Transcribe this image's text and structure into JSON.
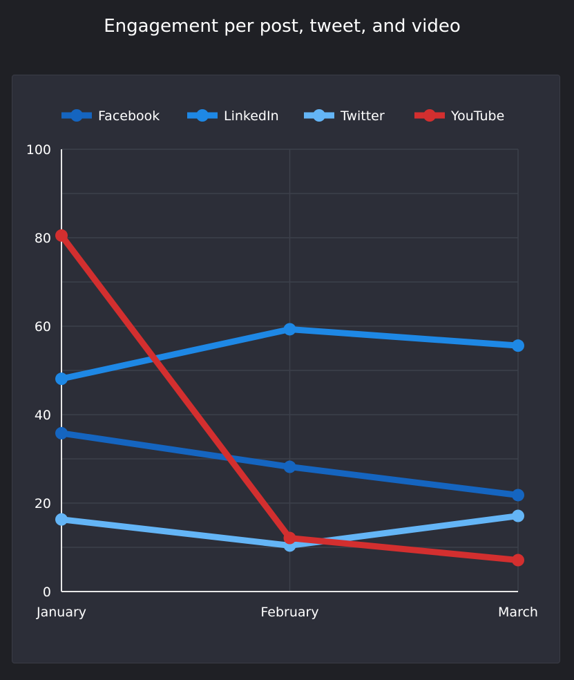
{
  "chart_data": {
    "type": "line",
    "title": "Engagement per post, tweet, and video",
    "categories": [
      "January",
      "February",
      "March"
    ],
    "ylim": [
      0,
      100
    ],
    "yticks": [
      0,
      20,
      40,
      60,
      80,
      100
    ],
    "grid": true,
    "legend_position": "top",
    "series": [
      {
        "name": "Facebook",
        "color": "#1565c0",
        "values": [
          35.8,
          28.2,
          21.8
        ]
      },
      {
        "name": "LinkedIn",
        "color": "#1e88e5",
        "values": [
          48.1,
          59.3,
          55.6
        ]
      },
      {
        "name": "Twitter",
        "color": "#64b5f6",
        "values": [
          16.3,
          10.4,
          17.1
        ]
      },
      {
        "name": "YouTube",
        "color": "#d32f2f",
        "values": [
          80.5,
          12.1,
          7.1
        ]
      }
    ]
  }
}
